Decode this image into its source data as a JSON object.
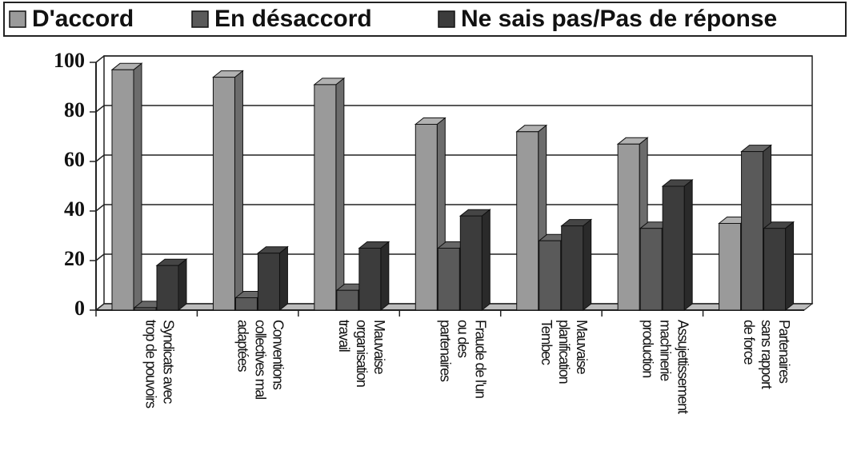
{
  "chart_data": {
    "type": "bar3d",
    "categories": [
      [
        "Syndicats avec",
        "trop de pouvoirs"
      ],
      [
        "Conventions",
        "collectives mal",
        "adaptées"
      ],
      [
        "Mauvaise",
        "organisation",
        "travail"
      ],
      [
        "Fraude de l'un",
        "ou des",
        "partenaires"
      ],
      [
        "Mauvaise",
        "planification",
        "Tembec"
      ],
      [
        "Assujettissement",
        "machinerie",
        "production"
      ],
      [
        "Partenaires",
        "sans rapport",
        "de force"
      ]
    ],
    "series": [
      {
        "name": "D'accord",
        "color": "#9a9a9a",
        "values": [
          97,
          94,
          91,
          75,
          72,
          67,
          35
        ]
      },
      {
        "name": "En désaccord",
        "color": "#5a5a5a",
        "values": [
          1,
          5,
          8,
          25,
          28,
          33,
          64
        ]
      },
      {
        "name": "Ne sais pas/Pas de réponse",
        "color": "#3c3c3c",
        "values": [
          18,
          23,
          25,
          38,
          34,
          50,
          33
        ]
      }
    ],
    "ylim": [
      0,
      100
    ],
    "yticks": [
      0,
      20,
      40,
      60,
      80,
      100
    ],
    "grid": true
  }
}
